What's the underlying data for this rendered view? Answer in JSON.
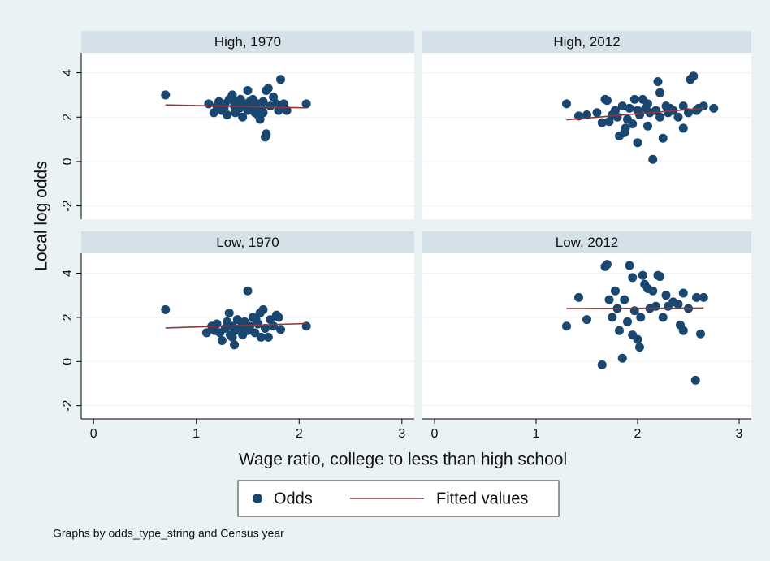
{
  "chart_data": {
    "type": "scatter",
    "x_label": "Wage ratio, college to less than high school",
    "y_label": "Local log odds",
    "note": "Graphs by odds_type_string and Census year",
    "xlim": [
      -0.12,
      3.12
    ],
    "ylim": [
      -2.6,
      4.9
    ],
    "xticks": [
      0,
      1,
      2,
      3
    ],
    "yticks": [
      -2,
      0,
      2,
      4
    ],
    "grid": true,
    "legend": "bottom",
    "series": [
      {
        "name": "Odds",
        "color": "#1a476f"
      },
      {
        "name": "Fitted values",
        "color": "#90353b"
      }
    ],
    "panels": [
      {
        "title": "High, 1970",
        "odds": {
          "x": [
            0.7,
            2.07,
            1.12,
            1.17,
            1.2,
            1.22,
            1.25,
            1.28,
            1.3,
            1.32,
            1.35,
            1.37,
            1.38,
            1.4,
            1.42,
            1.45,
            1.47,
            1.5,
            1.5,
            1.52,
            1.55,
            1.57,
            1.6,
            1.62,
            1.63,
            1.65,
            1.67,
            1.68,
            1.68,
            1.7,
            1.72,
            1.75,
            1.78,
            1.8,
            1.82,
            1.85,
            1.88,
            1.6,
            1.43,
            1.27,
            1.55,
            1.65
          ],
          "y": [
            3.0,
            2.6,
            2.6,
            2.2,
            2.5,
            2.7,
            2.3,
            2.6,
            2.1,
            2.8,
            3.0,
            2.5,
            2.2,
            2.7,
            2.4,
            2.0,
            2.6,
            3.2,
            2.3,
            2.7,
            2.5,
            2.2,
            2.6,
            1.9,
            2.4,
            2.7,
            1.1,
            1.25,
            3.2,
            3.3,
            2.5,
            2.9,
            2.6,
            2.3,
            3.7,
            2.6,
            2.3,
            2.1,
            2.8,
            2.4,
            2.8,
            2.2
          ]
        },
        "fit": {
          "x": [
            0.7,
            2.07
          ],
          "y": [
            2.55,
            2.42
          ]
        }
      },
      {
        "title": "High, 2012",
        "odds": {
          "x": [
            1.3,
            1.42,
            1.5,
            1.6,
            1.65,
            1.68,
            1.7,
            1.72,
            1.75,
            1.78,
            1.8,
            1.82,
            1.85,
            1.87,
            1.88,
            1.9,
            1.92,
            1.95,
            1.97,
            2.0,
            2.0,
            2.02,
            2.05,
            2.08,
            2.1,
            2.12,
            2.15,
            2.18,
            2.2,
            2.22,
            2.25,
            2.28,
            2.3,
            2.32,
            2.35,
            2.4,
            2.45,
            2.45,
            2.5,
            2.52,
            2.55,
            2.58,
            2.6,
            2.65,
            2.75,
            2.1,
            2.22
          ],
          "y": [
            2.6,
            2.05,
            2.1,
            2.2,
            1.75,
            2.8,
            2.75,
            1.8,
            2.1,
            2.3,
            2.0,
            1.15,
            2.5,
            1.3,
            1.5,
            1.9,
            2.4,
            1.7,
            2.8,
            2.3,
            0.85,
            2.1,
            2.8,
            2.4,
            1.6,
            2.2,
            0.1,
            2.3,
            3.6,
            2.0,
            1.05,
            2.5,
            2.2,
            2.4,
            2.3,
            2.0,
            1.5,
            2.5,
            2.2,
            3.7,
            3.85,
            2.3,
            2.4,
            2.5,
            2.4,
            2.6,
            3.1
          ]
        },
        "fit": {
          "x": [
            1.3,
            2.65
          ],
          "y": [
            1.88,
            2.4
          ]
        }
      },
      {
        "title": "Low, 1970",
        "odds": {
          "x": [
            0.7,
            2.07,
            1.1,
            1.15,
            1.18,
            1.2,
            1.23,
            1.25,
            1.28,
            1.3,
            1.32,
            1.33,
            1.35,
            1.37,
            1.38,
            1.4,
            1.42,
            1.45,
            1.47,
            1.5,
            1.5,
            1.52,
            1.55,
            1.57,
            1.6,
            1.62,
            1.63,
            1.65,
            1.67,
            1.7,
            1.72,
            1.75,
            1.78,
            1.8,
            1.82,
            1.35,
            1.45,
            1.58
          ],
          "y": [
            2.35,
            1.6,
            1.3,
            1.6,
            1.4,
            1.7,
            1.3,
            0.95,
            1.5,
            1.8,
            2.2,
            1.2,
            1.6,
            0.75,
            1.4,
            1.9,
            1.5,
            1.2,
            1.8,
            3.2,
            1.4,
            1.6,
            2.0,
            1.3,
            1.7,
            2.2,
            1.1,
            2.35,
            1.5,
            1.1,
            1.9,
            1.6,
            2.1,
            2.0,
            1.45,
            1.1,
            1.7,
            1.9
          ]
        },
        "fit": {
          "x": [
            0.7,
            2.07
          ],
          "y": [
            1.52,
            1.72
          ]
        }
      },
      {
        "title": "Low, 2012",
        "odds": {
          "x": [
            1.3,
            1.42,
            1.5,
            1.65,
            1.68,
            1.7,
            1.72,
            1.75,
            1.78,
            1.8,
            1.82,
            1.85,
            1.87,
            1.9,
            1.92,
            1.95,
            1.97,
            2.0,
            2.02,
            2.03,
            2.05,
            2.07,
            2.1,
            2.12,
            2.15,
            2.18,
            2.2,
            2.22,
            2.25,
            2.28,
            2.3,
            2.35,
            2.4,
            2.42,
            2.45,
            2.45,
            2.5,
            2.57,
            2.58,
            2.62,
            2.65,
            1.95
          ],
          "y": [
            1.6,
            2.9,
            1.9,
            -0.15,
            4.3,
            4.4,
            2.8,
            2.0,
            3.2,
            2.4,
            1.4,
            0.15,
            2.8,
            1.8,
            4.35,
            3.8,
            2.3,
            1.0,
            0.65,
            2.0,
            3.9,
            3.5,
            3.3,
            2.4,
            3.2,
            2.5,
            3.9,
            3.85,
            2.0,
            3.0,
            2.5,
            2.7,
            2.6,
            1.65,
            3.1,
            1.4,
            2.4,
            -0.85,
            2.9,
            1.25,
            2.9,
            1.2
          ]
        },
        "fit": {
          "x": [
            1.3,
            2.65
          ],
          "y": [
            2.4,
            2.42
          ]
        }
      }
    ]
  }
}
